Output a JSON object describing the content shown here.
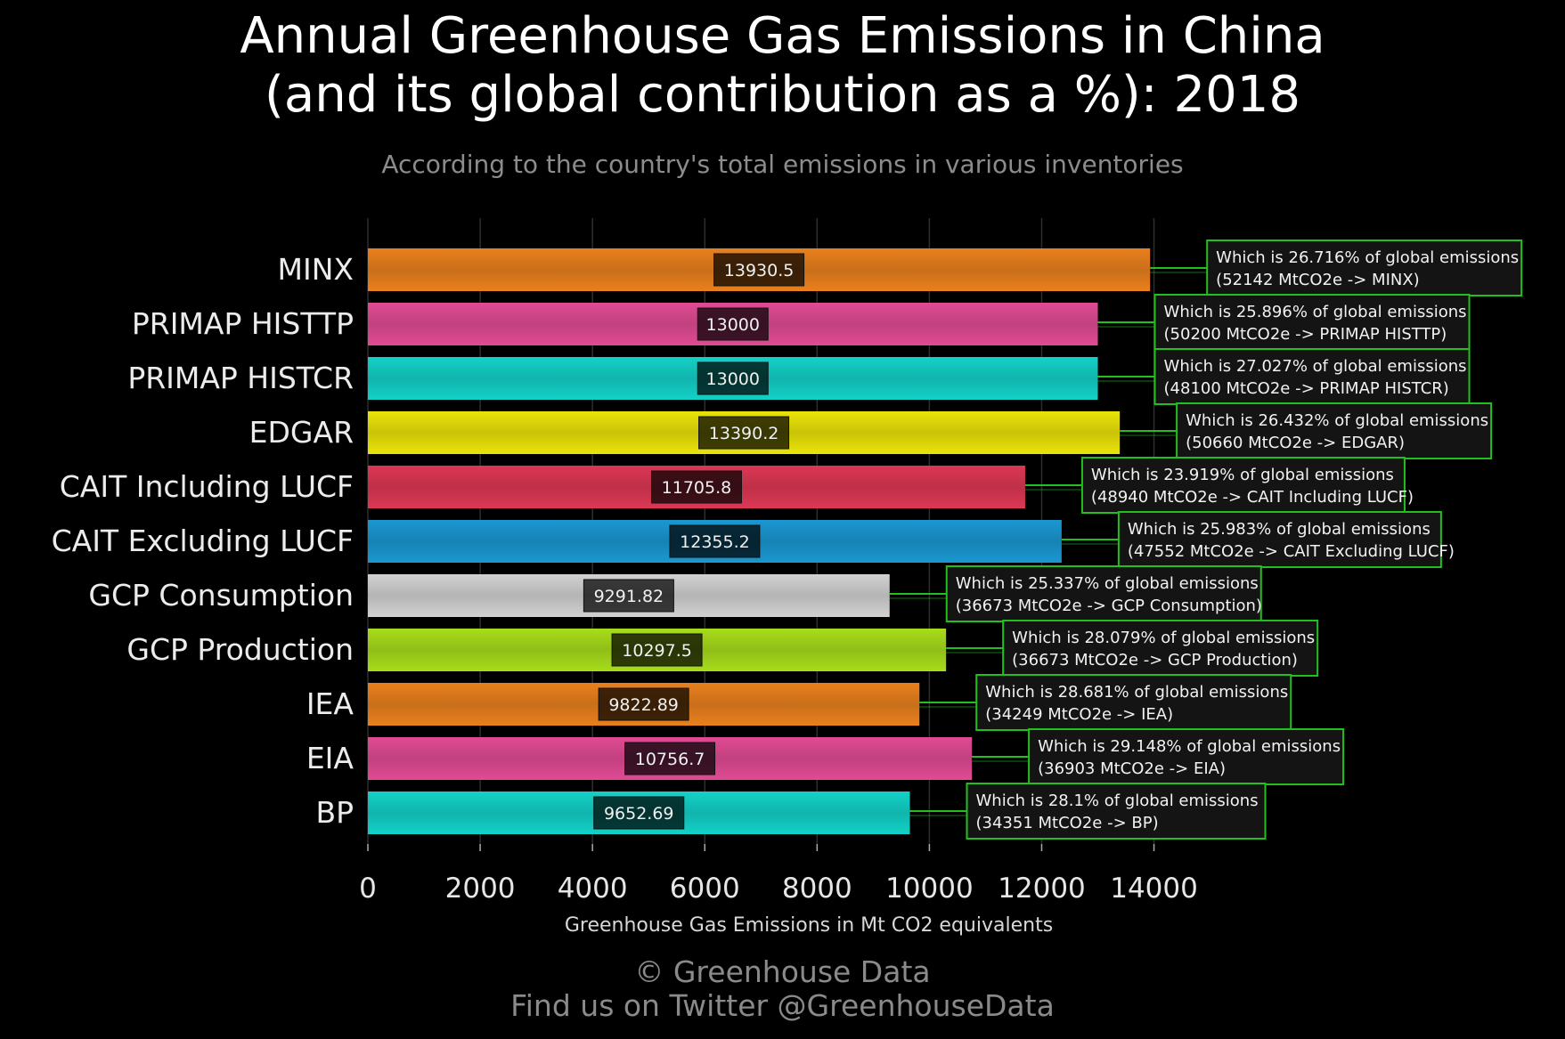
{
  "title_line1": "Annual Greenhouse Gas Emissions in China",
  "title_line2": "(and its global contribution as a %): 2018",
  "subtitle": "According to the country's total emissions in various inventories",
  "credit_line1": "© Greenhouse Data",
  "credit_line2": "Find us on Twitter @GreenhouseData",
  "chart_data": {
    "type": "bar",
    "orientation": "horizontal",
    "xlabel": "Greenhouse Gas Emissions in Mt CO2 equivalents",
    "xlim": [
      0,
      15500
    ],
    "xticks": [
      0,
      2000,
      4000,
      6000,
      8000,
      10000,
      12000,
      14000
    ],
    "grid": true,
    "categories": [
      "MINX",
      "PRIMAP HISTTP",
      "PRIMAP HISTCR",
      "EDGAR",
      "CAIT Including LUCF",
      "CAIT Excluding LUCF",
      "GCP Consumption",
      "GCP Production",
      "IEA",
      "EIA",
      "BP"
    ],
    "values": [
      13930.5,
      13000,
      13000,
      13390.2,
      11705.8,
      12355.2,
      9291.82,
      10297.5,
      9822.89,
      10756.7,
      9652.69
    ],
    "value_labels": [
      "13930.5",
      "13000",
      "13000",
      "13390.2",
      "11705.8",
      "12355.2",
      "9291.82",
      "10297.5",
      "9822.89",
      "10756.7",
      "9652.69"
    ],
    "bar_colors": [
      "#f5871f",
      "#ec4f9b",
      "#14dcd2",
      "#f6ef0a",
      "#e83a58",
      "#1c9fdc",
      "#dcdcdc",
      "#b0e81c",
      "#f5871f",
      "#ec4f9b",
      "#14dcd2"
    ],
    "annotations": [
      {
        "line1": "Which is 26.716% of global emissions",
        "line2": "(52142 MtCO2e -> MINX)"
      },
      {
        "line1": "Which is 25.896% of global emissions",
        "line2": "(50200 MtCO2e -> PRIMAP HISTTP)"
      },
      {
        "line1": "Which is 27.027% of global emissions",
        "line2": "(48100 MtCO2e -> PRIMAP HISTCR)"
      },
      {
        "line1": "Which is 26.432% of global emissions",
        "line2": "(50660 MtCO2e -> EDGAR)"
      },
      {
        "line1": "Which is 23.919% of global emissions",
        "line2": "(48940 MtCO2e -> CAIT Including LUCF)"
      },
      {
        "line1": "Which is 25.983% of global emissions",
        "line2": "(47552 MtCO2e -> CAIT Excluding LUCF)"
      },
      {
        "line1": "Which is 25.337% of global emissions",
        "line2": "(36673 MtCO2e -> GCP Consumption)"
      },
      {
        "line1": "Which is 28.079% of global emissions",
        "line2": "(36673 MtCO2e -> GCP Production)"
      },
      {
        "line1": "Which is 28.681% of global emissions",
        "line2": "(34249 MtCO2e -> IEA)"
      },
      {
        "line1": "Which is 29.148% of global emissions",
        "line2": "(36903 MtCO2e -> EIA)"
      },
      {
        "line1": "Which is 28.1% of global emissions",
        "line2": "(34351 MtCO2e -> BP)"
      }
    ],
    "annotation_border_color": "#22c01c"
  }
}
